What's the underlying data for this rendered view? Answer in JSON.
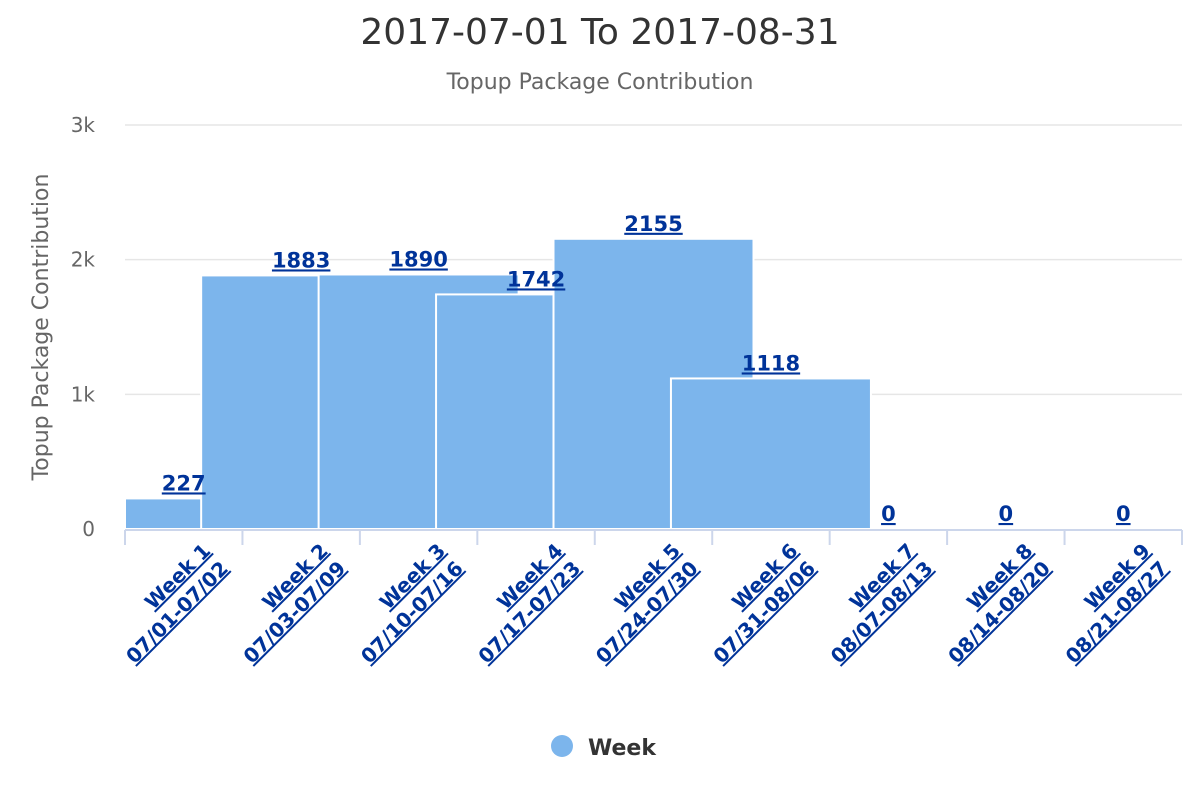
{
  "chart_data": {
    "type": "bar",
    "title": "2017-07-01 To 2017-08-31",
    "subtitle": "Topup Package Contribution",
    "ylabel": "Topup Package Contribution",
    "xlabel": "",
    "ylim": [
      0,
      3000
    ],
    "yticks": [
      "0",
      "1k",
      "2k",
      "3k"
    ],
    "grid": true,
    "legend_position": "bottom",
    "categories": [
      {
        "week": "Week 1",
        "range": "07/01-07/02"
      },
      {
        "week": "Week 2",
        "range": "07/03-07/09"
      },
      {
        "week": "Week 3",
        "range": "07/10-07/16"
      },
      {
        "week": "Week 4",
        "range": "07/17-07/23"
      },
      {
        "week": "Week 5",
        "range": "07/24-07/30"
      },
      {
        "week": "Week 6",
        "range": "07/31-08/06"
      },
      {
        "week": "Week 7",
        "range": "08/07-08/13"
      },
      {
        "week": "Week 8",
        "range": "08/14-08/20"
      },
      {
        "week": "Week 9",
        "range": "08/21-08/27"
      }
    ],
    "series": [
      {
        "name": "Week",
        "color": "#7cb5ec",
        "values": [
          227,
          1883,
          1890,
          1742,
          2155,
          1118,
          0,
          0,
          0
        ]
      }
    ]
  }
}
